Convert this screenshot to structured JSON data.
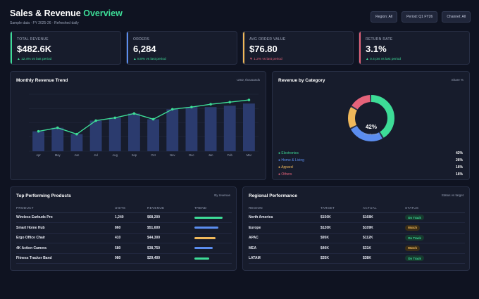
{
  "header": {
    "title_main": "Sales & Revenue",
    "title_accent": "Overview",
    "subtitle": "Sample data · FY 2025-26 · Refreshed daily",
    "filters": [
      "Region: All",
      "Period: Q1 FY26",
      "Channel: All"
    ]
  },
  "kpis": [
    {
      "label": "TOTAL REVENUE",
      "value": "$482.6K",
      "delta": "▲ 12.4% vs last period",
      "direction": "up",
      "color": "#3ddc97"
    },
    {
      "label": "ORDERS",
      "value": "6,284",
      "delta": "▲ 8.8% vs last period",
      "direction": "up",
      "color": "#5b8def"
    },
    {
      "label": "AVG ORDER VALUE",
      "value": "$76.80",
      "delta": "▼ 1.2% vs last period",
      "direction": "down",
      "color": "#f0b85a"
    },
    {
      "label": "RETURN RATE",
      "value": "3.1%",
      "delta": "▲ 0.4 pts vs last period",
      "direction": "up",
      "color": "#e5637a"
    }
  ],
  "revenue_panel": {
    "title": "Monthly Revenue Trend",
    "note": "USD, thousands"
  },
  "category_panel": {
    "title": "Revenue by Category",
    "note": "Share %",
    "center_value": "42%",
    "center_label": "Electronics"
  },
  "products_panel": {
    "title": "Top Performing Products",
    "note": "By revenue",
    "columns": [
      "PRODUCT",
      "UNITS",
      "REVENUE",
      "TREND"
    ],
    "rows": [
      {
        "product": "Wireless Earbuds Pro",
        "units": "1,240",
        "revenue": "$68,200",
        "trend": 0.95,
        "color": "#3ddc97"
      },
      {
        "product": "Smart Home Hub",
        "units": "860",
        "revenue": "$51,600",
        "trend": 0.8,
        "color": "#5b8def"
      },
      {
        "product": "Ergo Office Chair",
        "units": "410",
        "revenue": "$44,300",
        "trend": 0.72,
        "color": "#f0b85a"
      },
      {
        "product": "4K Action Camera",
        "units": "580",
        "revenue": "$38,750",
        "trend": 0.62,
        "color": "#5b8def"
      },
      {
        "product": "Fitness Tracker Band",
        "units": "980",
        "revenue": "$29,400",
        "trend": 0.5,
        "color": "#3ddc97"
      }
    ]
  },
  "regional_panel": {
    "title": "Regional Performance",
    "note": "Status vs target",
    "columns": [
      "REGION",
      "TARGET",
      "ACTUAL",
      "STATUS"
    ],
    "rows": [
      {
        "region": "North America",
        "target": "$150K",
        "actual": "$168K",
        "status": "On Track",
        "kind": "ok"
      },
      {
        "region": "Europe",
        "target": "$120K",
        "actual": "$109K",
        "status": "Watch",
        "kind": "warn"
      },
      {
        "region": "APAC",
        "target": "$95K",
        "actual": "$112K",
        "status": "On Track",
        "kind": "ok"
      },
      {
        "region": "MEA",
        "target": "$40K",
        "actual": "$31K",
        "status": "Watch",
        "kind": "warn"
      },
      {
        "region": "LATAM",
        "target": "$35K",
        "actual": "$38K",
        "status": "On Track",
        "kind": "ok"
      }
    ]
  },
  "chart_data": [
    {
      "type": "bar",
      "categories": [
        "Apr",
        "May",
        "Jun",
        "Jul",
        "Aug",
        "Sep",
        "Oct",
        "Nov",
        "Dec",
        "Jan",
        "Feb",
        "Mar"
      ],
      "series": [
        {
          "values": [
            28,
            33,
            24,
            43,
            47,
            53,
            45,
            59,
            62,
            62,
            64,
            67
          ],
          "color": "#2b3b6e"
        },
        {
          "values": [
            28,
            33,
            24,
            43,
            47,
            53,
            45,
            59,
            62,
            66,
            69,
            72
          ],
          "color": "#3ddc97"
        }
      ],
      "ylim": [
        0,
        80
      ],
      "grid": true
    },
    {
      "type": "pie",
      "donut": true,
      "series": [
        {
          "name": "Electronics",
          "value": 42,
          "color": "#3ddc97"
        },
        {
          "name": "Home & Living",
          "value": 26,
          "color": "#5b8def"
        },
        {
          "name": "Apparel",
          "value": 16,
          "color": "#f0b85a"
        },
        {
          "name": "Others",
          "value": 16,
          "color": "#e5637a"
        }
      ],
      "value_labels": [
        "42%",
        "26%",
        "16%",
        "16%"
      ]
    }
  ]
}
